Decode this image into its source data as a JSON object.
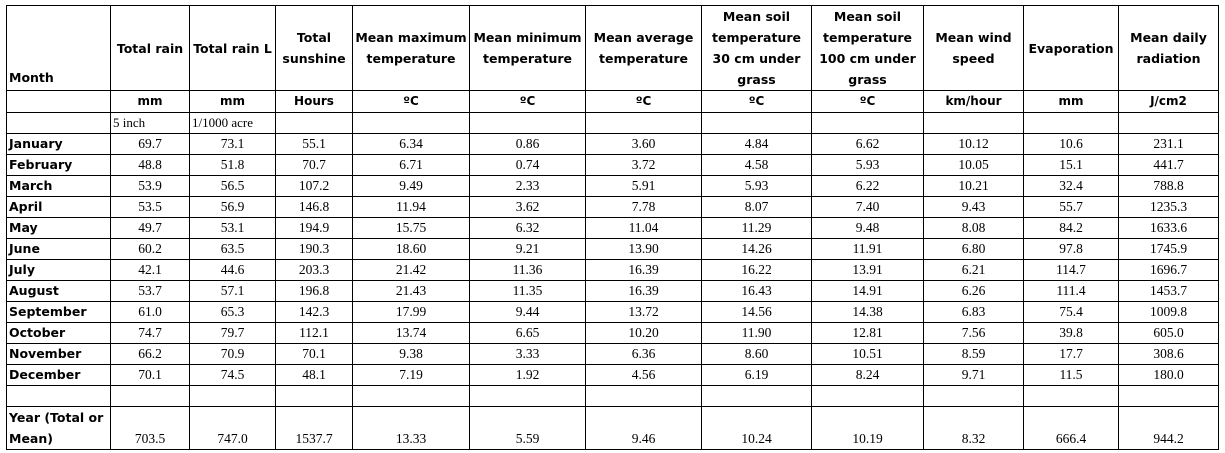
{
  "headers": [
    "Month",
    "Total rain",
    "Total rain L",
    "Total sunshine",
    "Mean maximum temperature",
    "Mean minimum temperature",
    "Mean average temperature",
    "Mean soil temperature 30 cm under grass",
    "Mean soil temperature 100 cm under grass",
    "Mean wind speed",
    "Evaporation",
    "Mean daily radiation"
  ],
  "units": [
    "",
    "mm",
    "mm",
    "Hours",
    "ºC",
    "ºC",
    "ºC",
    "ºC",
    "ºC",
    "km/hour",
    "mm",
    "J/cm2"
  ],
  "sub_units": [
    "",
    "5 inch",
    "1/1000 acre",
    "",
    "",
    "",
    "",
    "",
    "",
    "",
    "",
    ""
  ],
  "rows": [
    [
      "January",
      "69.7",
      "73.1",
      "55.1",
      "6.34",
      "0.86",
      "3.60",
      "4.84",
      "6.62",
      "10.12",
      "10.6",
      "231.1"
    ],
    [
      "February",
      "48.8",
      "51.8",
      "70.7",
      "6.71",
      "0.74",
      "3.72",
      "4.58",
      "5.93",
      "10.05",
      "15.1",
      "441.7"
    ],
    [
      "March",
      "53.9",
      "56.5",
      "107.2",
      "9.49",
      "2.33",
      "5.91",
      "5.93",
      "6.22",
      "10.21",
      "32.4",
      "788.8"
    ],
    [
      "April",
      "53.5",
      "56.9",
      "146.8",
      "11.94",
      "3.62",
      "7.78",
      "8.07",
      "7.40",
      "9.43",
      "55.7",
      "1235.3"
    ],
    [
      "May",
      "49.7",
      "53.1",
      "194.9",
      "15.75",
      "6.32",
      "11.04",
      "11.29",
      "9.48",
      "8.08",
      "84.2",
      "1633.6"
    ],
    [
      "June",
      "60.2",
      "63.5",
      "190.3",
      "18.60",
      "9.21",
      "13.90",
      "14.26",
      "11.91",
      "6.80",
      "97.8",
      "1745.9"
    ],
    [
      "July",
      "42.1",
      "44.6",
      "203.3",
      "21.42",
      "11.36",
      "16.39",
      "16.22",
      "13.91",
      "6.21",
      "114.7",
      "1696.7"
    ],
    [
      "August",
      "53.7",
      "57.1",
      "196.8",
      "21.43",
      "11.35",
      "16.39",
      "16.43",
      "14.91",
      "6.26",
      "111.4",
      "1453.7"
    ],
    [
      "September",
      "61.0",
      "65.3",
      "142.3",
      "17.99",
      "9.44",
      "13.72",
      "14.56",
      "14.38",
      "6.83",
      "75.4",
      "1009.8"
    ],
    [
      "October",
      "74.7",
      "79.7",
      "112.1",
      "13.74",
      "6.65",
      "10.20",
      "11.90",
      "12.81",
      "7.56",
      "39.8",
      "605.0"
    ],
    [
      "November",
      "66.2",
      "70.9",
      "70.1",
      "9.38",
      "3.33",
      "6.36",
      "8.60",
      "10.51",
      "8.59",
      "17.7",
      "308.6"
    ],
    [
      "December",
      "70.1",
      "74.5",
      "48.1",
      "7.19",
      "1.92",
      "4.56",
      "6.19",
      "8.24",
      "9.71",
      "11.5",
      "180.0"
    ]
  ],
  "year_row": [
    "Year (Total or Mean)",
    "703.5",
    "747.0",
    "1537.7",
    "13.33",
    "5.59",
    "9.46",
    "10.24",
    "10.19",
    "8.32",
    "666.4",
    "944.2"
  ]
}
